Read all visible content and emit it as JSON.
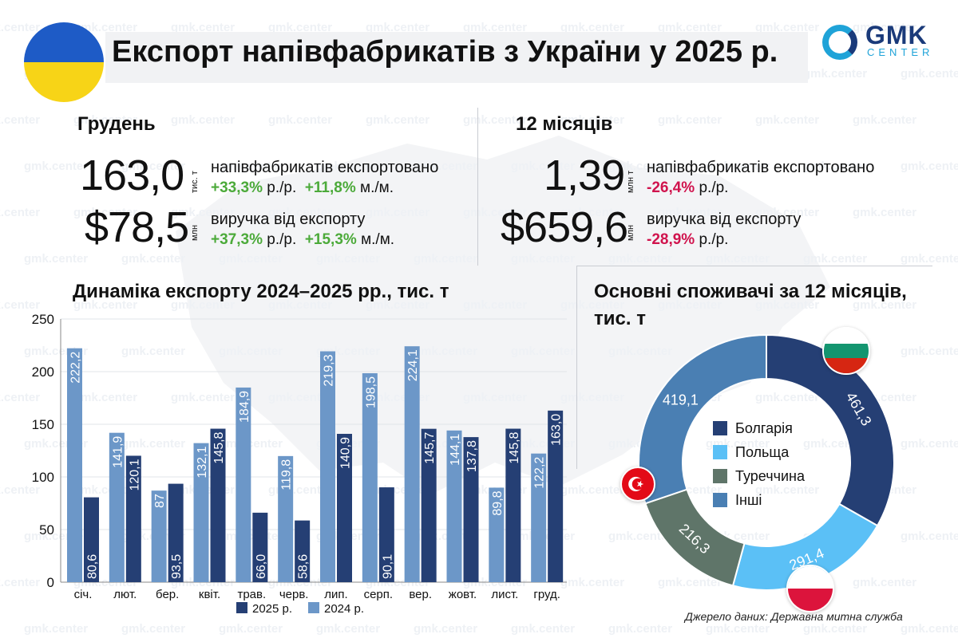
{
  "header": {
    "title": "Експорт напівфабрикатів з України у 2025 р.",
    "logo_main": "GMK",
    "logo_sub": "CENTER",
    "watermark": "gmk.center"
  },
  "colors": {
    "blue_flag": "#1e5bc6",
    "yellow_flag": "#f7d417",
    "series_2025": "#253f74",
    "series_2024": "#6c97c8",
    "positive": "#4caa3a",
    "negative": "#d0134d",
    "donut": [
      "#253f74",
      "#5bc0f6",
      "#5f7569",
      "#4a7fb3"
    ]
  },
  "december": {
    "heading": "Грудень",
    "volume_value": "163,0",
    "volume_unit": "тис. т",
    "volume_desc": "напівфабрикатів експортовано",
    "volume_yoy": "+33,3%",
    "yoy_label": "р./р.",
    "volume_mom": "+11,8%",
    "mom_label": "м./м.",
    "revenue_value": "$78,5",
    "revenue_unit": "млн",
    "revenue_desc": "виручка від експорту",
    "revenue_yoy": "+37,3%",
    "revenue_mom": "+15,3%"
  },
  "year": {
    "heading": "12 місяців",
    "volume_value": "1,39",
    "volume_unit": "млн т",
    "volume_desc": "напівфабрикатів експортовано",
    "volume_yoy": "-26,4%",
    "yoy_label": "р./р.",
    "revenue_value": "$659,6",
    "revenue_unit": "млн",
    "revenue_desc": "виручка від експорту",
    "revenue_yoy": "-28,9%"
  },
  "chart_data": [
    {
      "type": "bar",
      "title": "Динаміка експорту 2024–2025 рр., тис. т",
      "categories": [
        "січ.",
        "лют.",
        "бер.",
        "квіт.",
        "трав.",
        "черв.",
        "лип.",
        "серп.",
        "вер.",
        "жовт.",
        "лист.",
        "груд."
      ],
      "series": [
        {
          "name": "2024 р.",
          "values": [
            222.2,
            141.9,
            87,
            132.1,
            184.9,
            119.8,
            219.3,
            198.5,
            224.1,
            144.1,
            89.8,
            122.2
          ],
          "labels": [
            "222,2",
            "141,9",
            "87",
            "132,1",
            "184,9",
            "119,8",
            "219,3",
            "198,5",
            "224,1",
            "144,1",
            "89,8",
            "122,2"
          ]
        },
        {
          "name": "2025 р.",
          "values": [
            80.6,
            120.1,
            93.5,
            145.8,
            66.0,
            58.6,
            140.9,
            90.1,
            145.7,
            137.8,
            145.8,
            163.0
          ],
          "labels": [
            "80,6",
            "120,1",
            "93,5",
            "145,8",
            "66,0",
            "58,6",
            "140,9",
            "90,1",
            "145,7",
            "137,8",
            "145,8",
            "163,0"
          ]
        }
      ],
      "ylim": [
        0,
        250
      ],
      "yticks": [
        0,
        50,
        100,
        150,
        200,
        250
      ],
      "legend": [
        "2025 р.",
        "2024 р."
      ],
      "legend_position": "bottom-center"
    },
    {
      "type": "pie",
      "title": "Основні споживачі за 12 місяців, тис. т",
      "labels": [
        "Болгарія",
        "Польща",
        "Туреччина",
        "Інші"
      ],
      "values": [
        461.3,
        291.4,
        216.3,
        419.1
      ],
      "value_labels": [
        "461,3",
        "291,4",
        "216,3",
        "419,1"
      ],
      "donut": true,
      "legend_position": "center"
    }
  ],
  "source": "Джерело даних: Державна митна служба"
}
